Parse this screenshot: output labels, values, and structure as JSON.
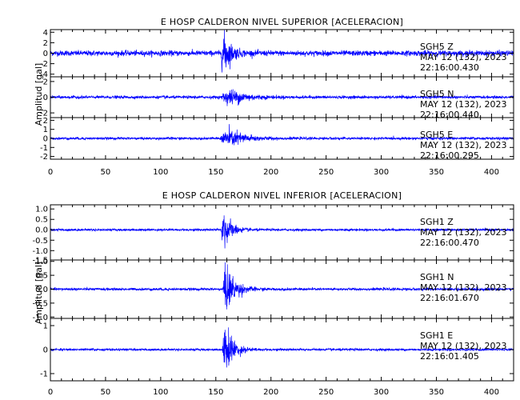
{
  "chart_data": [
    {
      "type": "line",
      "title": "E HOSP CALDERON NIVEL SUPERIOR [ACELERACION]",
      "ylabel": "Amplitud [gal]",
      "xlim": [
        0,
        420
      ],
      "x_ticks": [
        "0",
        "50",
        "100",
        "150",
        "200",
        "250",
        "300",
        "350",
        "400"
      ],
      "line_color": "#0000ff",
      "series": [
        {
          "name": "SGH5   Z",
          "date": "MAY 12 (132), 2023",
          "time": "22:16:00.430",
          "ylim": [
            -4.5,
            4.5
          ],
          "y_ticks": [
            "4",
            "2",
            "0",
            "-2",
            "-4"
          ],
          "y_tick_values": [
            4,
            2,
            0,
            -2,
            -4
          ],
          "noise": 0.55,
          "onset": 155,
          "peak": 4.2,
          "decay": 6,
          "rise": 1
        },
        {
          "name": "SGH5   N",
          "date": "MAY 12 (132), 2023",
          "time": "22:16:00.440",
          "ylim": [
            -2.6,
            2.6
          ],
          "y_ticks": [
            "2",
            "0",
            "-2"
          ],
          "y_tick_values": [
            2,
            0,
            -2
          ],
          "noise": 0.2,
          "onset": 155,
          "peak": 2.0,
          "decay": 12,
          "rise": 10
        },
        {
          "name": "SGH5   E",
          "date": "MAY 12 (132), 2023",
          "time": "22:16:00.295",
          "ylim": [
            -2.3,
            2.3
          ],
          "y_ticks": [
            "2",
            "1",
            "0",
            "-1",
            "-2"
          ],
          "y_tick_values": [
            2,
            1,
            0,
            -1,
            -2
          ],
          "noise": 0.15,
          "onset": 154,
          "peak": 1.9,
          "decay": 12,
          "rise": 9
        }
      ]
    },
    {
      "type": "line",
      "title": "E HOSP CALDERON NIVEL INFERIOR [ACELERACION]",
      "ylabel": "Amplitud [gal]",
      "xlim": [
        0,
        420
      ],
      "x_ticks": [
        "0",
        "50",
        "100",
        "150",
        "200",
        "250",
        "300",
        "350",
        "400"
      ],
      "line_color": "#0000ff",
      "series": [
        {
          "name": "SGH1   Z",
          "date": "MAY 12 (132), 2023",
          "time": "22:16:00.470",
          "ylim": [
            -1.45,
            1.2
          ],
          "y_ticks": [
            "1.0",
            "0.5",
            "0.0",
            "-0.5",
            "-1.0",
            "-1.5"
          ],
          "y_tick_values": [
            1.0,
            0.5,
            0.0,
            -0.5,
            -1.0,
            -1.45
          ],
          "noise": 0.06,
          "onset": 155,
          "peak": 1.1,
          "decay": 6,
          "rise": 1.5
        },
        {
          "name": "SGH1   N",
          "date": "MAY 12 (132), 2023",
          "time": "22:16:01.670",
          "ylim": [
            -1.05,
            1.05
          ],
          "y_ticks": [
            "1.0",
            "0.5",
            "0.0",
            "-0.5",
            "-1.0"
          ],
          "y_tick_values": [
            1.0,
            0.5,
            0.0,
            -0.5,
            -1.0
          ],
          "noise": 0.05,
          "onset": 156,
          "peak": 0.95,
          "decay": 8,
          "rise": 2
        },
        {
          "name": "SGH1   E",
          "date": "MAY 12 (132), 2023",
          "time": "22:16:01.405",
          "ylim": [
            -1.3,
            1.3
          ],
          "y_ticks": [
            "1",
            "0",
            "-1"
          ],
          "y_tick_values": [
            1,
            0,
            -1
          ],
          "noise": 0.05,
          "onset": 156,
          "peak": 1.2,
          "decay": 7,
          "rise": 2
        }
      ]
    }
  ]
}
